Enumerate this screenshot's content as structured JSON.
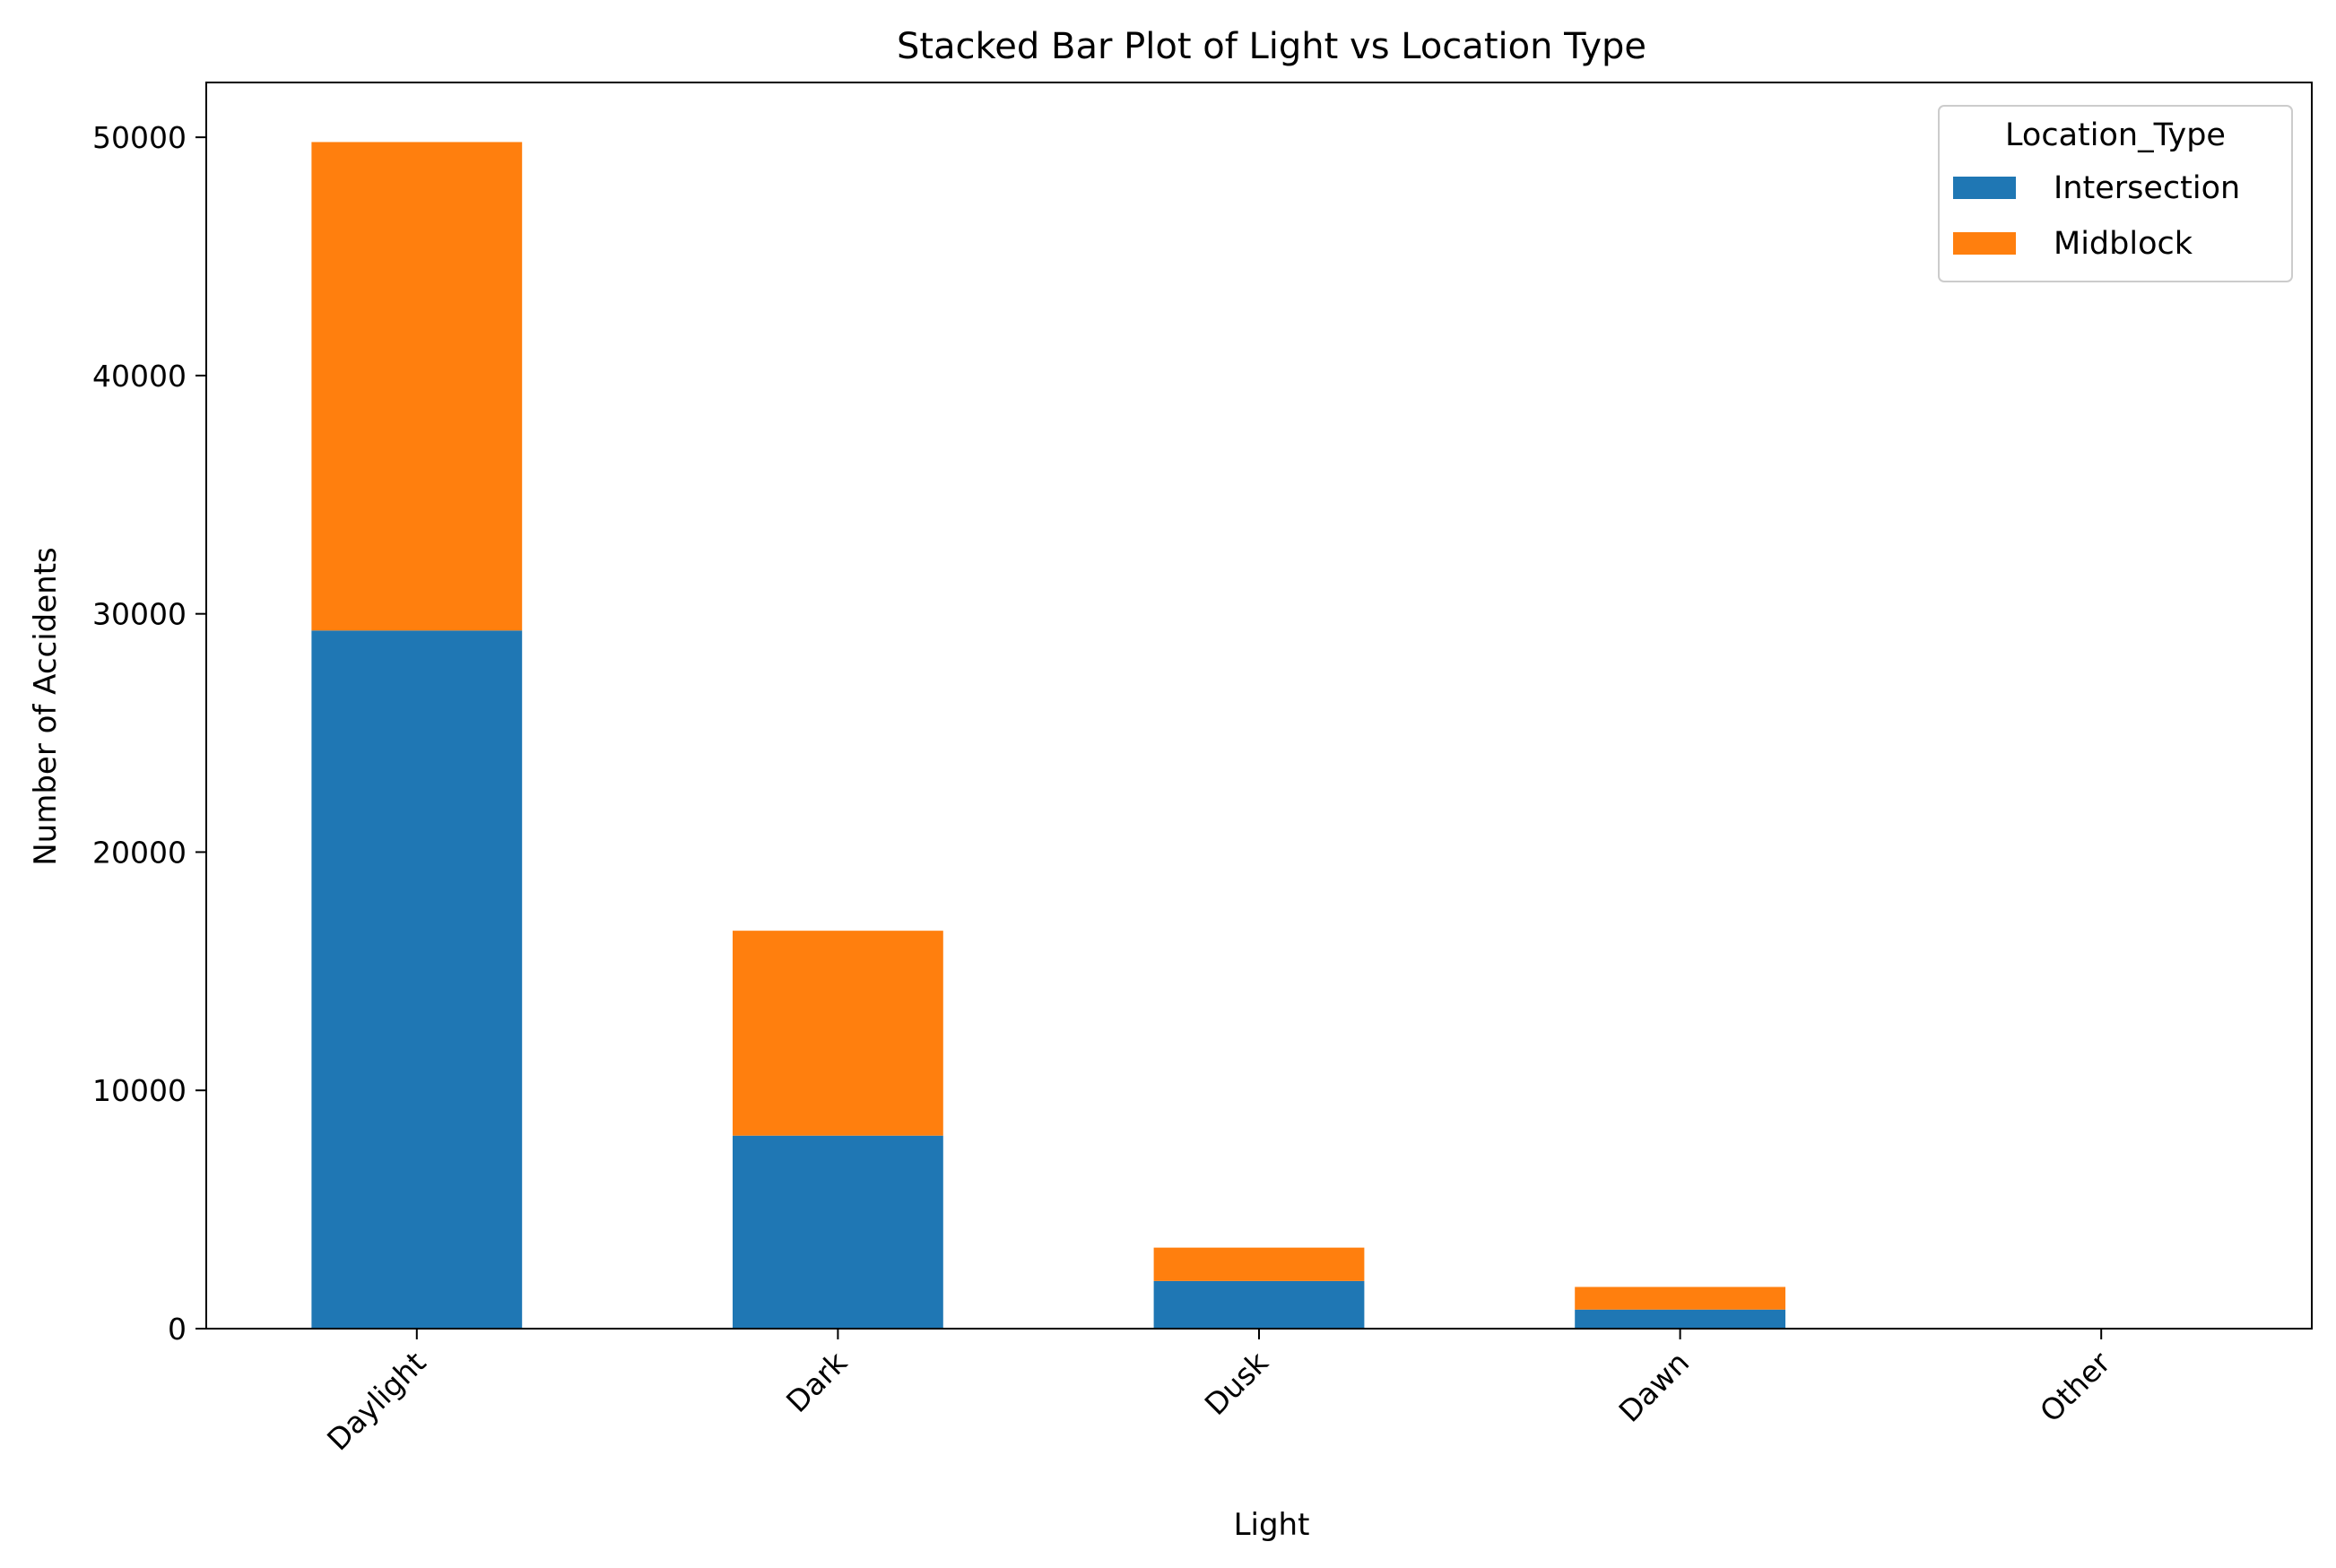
{
  "chart_data": {
    "type": "bar",
    "stacked": true,
    "title": "Stacked Bar Plot of Light vs Location Type",
    "xlabel": "Light",
    "ylabel": "Number of Accidents",
    "categories": [
      "Daylight",
      "Dark",
      "Dusk",
      "Dawn",
      "Other"
    ],
    "series": [
      {
        "name": "Intersection",
        "color": "#1f77b4",
        "values": [
          29300,
          8100,
          2000,
          800,
          0
        ]
      },
      {
        "name": "Midblock",
        "color": "#ff7f0e",
        "values": [
          20500,
          8600,
          1400,
          950,
          0
        ]
      }
    ],
    "ylim": [
      0,
      52300
    ],
    "yticks": [
      0,
      10000,
      20000,
      30000,
      40000,
      50000
    ],
    "ytick_labels": [
      "0",
      "10000",
      "20000",
      "30000",
      "40000",
      "50000"
    ],
    "grid": false,
    "legend": {
      "title": "Location_Type",
      "placement": "top-right"
    }
  }
}
